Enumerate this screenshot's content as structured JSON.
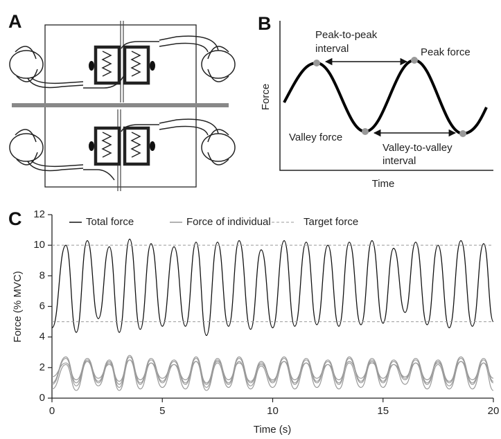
{
  "panel_a": {
    "label": "A"
  },
  "panel_b": {
    "label": "B",
    "y_label": "Force",
    "x_label": "Time",
    "peak_to_peak_interval": [
      "Peak-to-peak",
      "interval"
    ],
    "peak_force": "Peak force",
    "valley_force": "Valley force",
    "valley_to_valley_interval": [
      "Valley-to-valley",
      "interval"
    ]
  },
  "chart_data": {
    "type": "line",
    "panel_label": "C",
    "x_label": "Time (s)",
    "y_label": "Force (% MVC)",
    "xlim": [
      0,
      20
    ],
    "xticks": [
      0,
      5,
      10,
      15,
      20
    ],
    "ylim": [
      0,
      12
    ],
    "yticks": [
      0,
      2,
      4,
      6,
      8,
      10,
      12
    ],
    "x": [
      0,
      0.63,
      1.1,
      1.6,
      2.1,
      2.6,
      3.05,
      3.52,
      4.0,
      4.49,
      5.0,
      5.53,
      6.05,
      6.53,
      7.0,
      7.5,
      8.0,
      8.48,
      9.0,
      9.48,
      10.0,
      10.52,
      11.0,
      11.52,
      12.0,
      12.5,
      13.0,
      13.47,
      14.0,
      14.5,
      15.0,
      15.48,
      16.0,
      16.48,
      17.0,
      17.49,
      18.0,
      18.53,
      19.05,
      19.56,
      20
    ],
    "series": [
      {
        "name": "Total force",
        "color": "#111111",
        "values": [
          4.6,
          10.0,
          4.3,
          10.3,
          5.2,
          9.9,
          4.3,
          10.4,
          4.5,
          10.1,
          4.7,
          9.9,
          4.7,
          10.2,
          4.1,
          10.2,
          4.7,
          10.3,
          4.5,
          9.7,
          4.6,
          10.3,
          4.7,
          10.2,
          4.8,
          10.0,
          4.7,
          10.2,
          4.8,
          10.3,
          4.9,
          9.8,
          5.6,
          10.2,
          4.8,
          10.0,
          4.6,
          10.3,
          4.7,
          10.1,
          5.0
        ]
      },
      {
        "name": "Force of individual",
        "color": "#999999",
        "values": [
          [
            0.9,
            2.6,
            0.8,
            2.5,
            1.0,
            2.4,
            0.7,
            2.7,
            0.9,
            2.5,
            1.0,
            2.4,
            0.9,
            2.6,
            0.7,
            2.5,
            0.9,
            2.6,
            0.8,
            2.3,
            1.0,
            2.6,
            0.9,
            2.5,
            1.0,
            2.4,
            0.9,
            2.6,
            1.0,
            2.5,
            1.0,
            2.4,
            1.2,
            2.5,
            0.9,
            2.4,
            0.8,
            2.6,
            0.9,
            2.5,
            1.0
          ],
          [
            1.4,
            2.3,
            1.2,
            2.4,
            1.3,
            2.2,
            1.1,
            2.5,
            1.2,
            2.3,
            1.3,
            2.2,
            1.2,
            2.4,
            1.0,
            2.4,
            1.2,
            2.3,
            1.1,
            2.2,
            1.2,
            2.4,
            1.2,
            2.3,
            1.3,
            2.2,
            1.2,
            2.4,
            1.3,
            2.3,
            1.3,
            2.2,
            1.4,
            2.3,
            1.2,
            2.3,
            1.1,
            2.4,
            1.2,
            2.3,
            1.3
          ],
          [
            0.6,
            2.2,
            0.5,
            2.4,
            0.8,
            2.3,
            0.5,
            2.5,
            0.6,
            2.3,
            0.7,
            2.2,
            0.6,
            2.4,
            0.5,
            2.3,
            0.7,
            2.4,
            0.6,
            2.1,
            0.7,
            2.4,
            0.6,
            2.3,
            0.7,
            2.2,
            0.6,
            2.3,
            0.7,
            2.4,
            0.7,
            2.2,
            0.9,
            2.3,
            0.6,
            2.2,
            0.6,
            2.4,
            0.6,
            2.3,
            0.5
          ],
          [
            1.0,
            2.7,
            1.0,
            2.6,
            1.1,
            2.5,
            0.9,
            2.8,
            1.0,
            2.6,
            1.1,
            2.5,
            1.0,
            2.7,
            0.9,
            2.6,
            1.0,
            2.7,
            1.0,
            2.4,
            1.1,
            2.7,
            1.0,
            2.6,
            1.1,
            2.5,
            1.0,
            2.7,
            1.1,
            2.6,
            1.1,
            2.5,
            1.3,
            2.6,
            1.0,
            2.5,
            1.0,
            2.7,
            1.0,
            2.6,
            1.1
          ]
        ]
      },
      {
        "name": "Target force",
        "color": "#999999",
        "dashed": true,
        "levels": [
          5,
          10
        ]
      }
    ]
  }
}
